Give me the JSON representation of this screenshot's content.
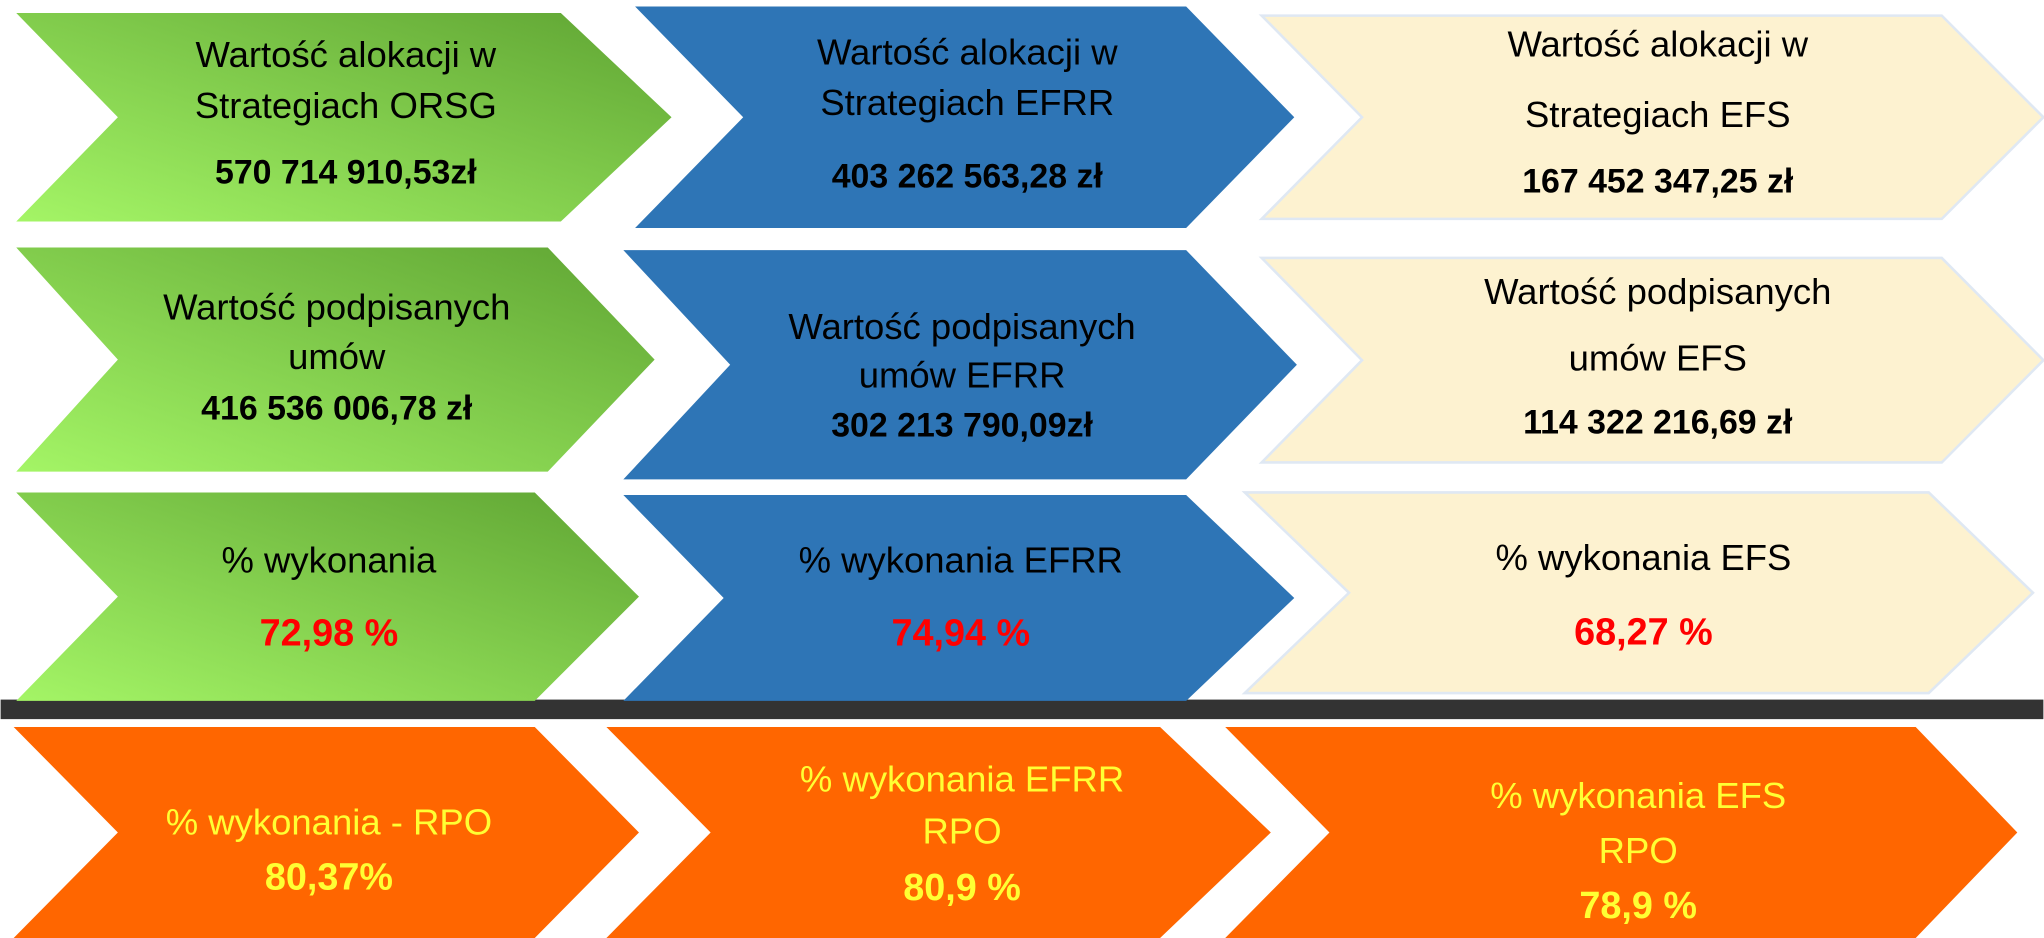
{
  "rows": [
    {
      "cells": [
        {
          "lines": [
            "Wartość alokacji w",
            "Strategiach ORSG"
          ],
          "value": "570 714 910,53zł"
        },
        {
          "lines": [
            "Wartość alokacji w",
            "Strategiach EFRR"
          ],
          "value": "403 262 563,28 zł"
        },
        {
          "lines": [
            "Wartość alokacji w",
            "Strategiach EFS"
          ],
          "value": "167 452 347,25 zł"
        }
      ]
    },
    {
      "cells": [
        {
          "lines": [
            "Wartość podpisanych",
            "umów"
          ],
          "value": "416 536 006,78 zł"
        },
        {
          "lines": [
            "Wartość podpisanych",
            "umów EFRR"
          ],
          "value": "302 213 790,09zł"
        },
        {
          "lines": [
            "Wartość podpisanych",
            "umów EFS"
          ],
          "value": "114 322 216,69 zł"
        }
      ]
    },
    {
      "cells": [
        {
          "lines": [
            "% wykonania"
          ],
          "value": "72,98 %"
        },
        {
          "lines": [
            "% wykonania EFRR"
          ],
          "value": "74,94 %"
        },
        {
          "lines": [
            "% wykonania EFS"
          ],
          "value": "68,27 %"
        }
      ]
    },
    {
      "cells": [
        {
          "lines": [
            "% wykonania - RPO"
          ],
          "value": "80,37%"
        },
        {
          "lines": [
            "% wykonania EFRR",
            "RPO"
          ],
          "value": "80,9 %"
        },
        {
          "lines": [
            "% wykonania EFS",
            "RPO"
          ],
          "value": "78,9 %"
        }
      ]
    }
  ]
}
